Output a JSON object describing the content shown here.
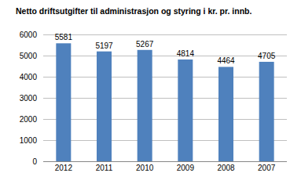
{
  "chart_data": {
    "type": "bar",
    "title": "Netto driftsutgifter til administrasjon og styring i kr. pr. innb.",
    "categories": [
      "2012",
      "2011",
      "2010",
      "2009",
      "2008",
      "2007"
    ],
    "values": [
      5581,
      5197,
      5267,
      4814,
      4464,
      4705
    ],
    "color": "#4f81bd",
    "ylim": [
      0,
      6000
    ],
    "yticks": [
      0,
      1000,
      2000,
      3000,
      4000,
      5000,
      6000
    ],
    "grid": true,
    "data_labels": true
  }
}
